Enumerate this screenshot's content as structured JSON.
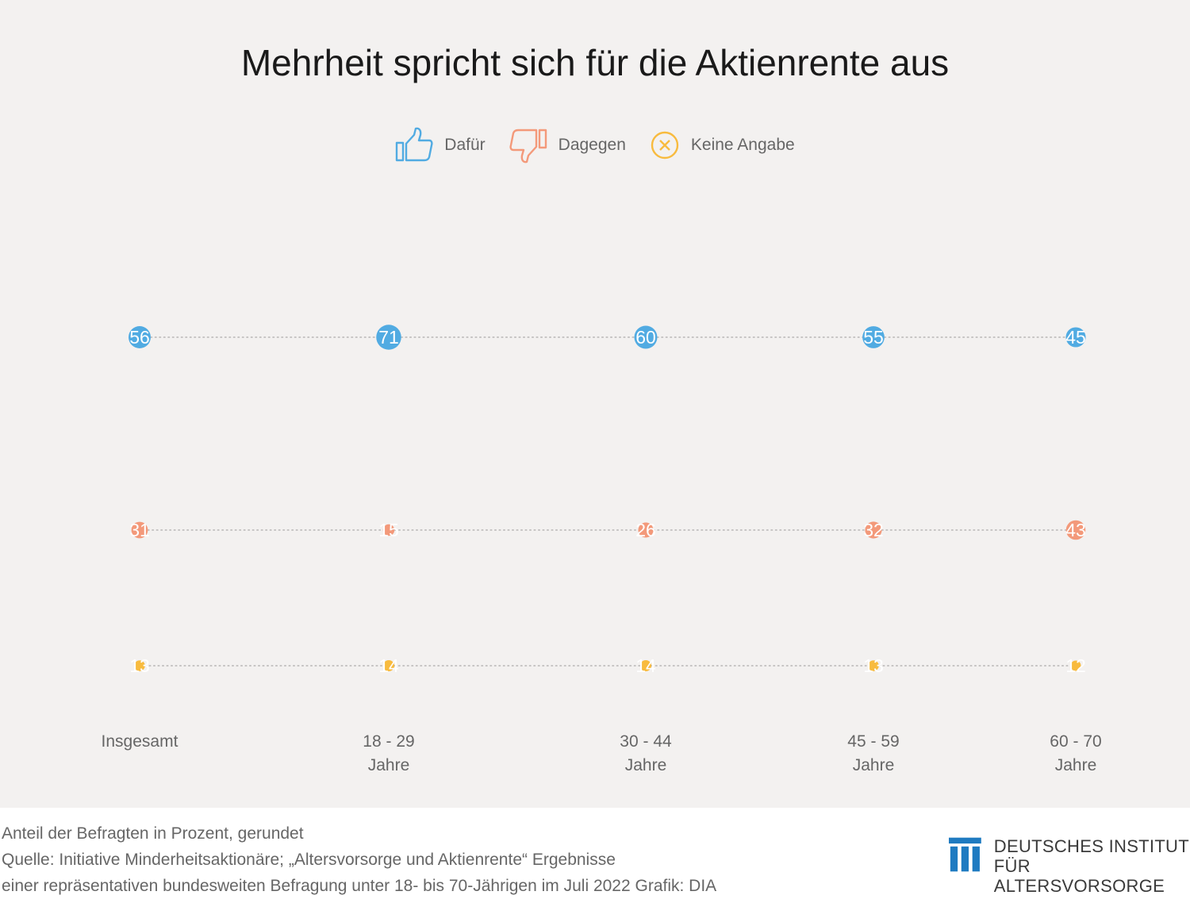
{
  "title": "Mehrheit spricht sich für die Aktienrente aus",
  "legend": {
    "items": [
      {
        "label": "Dafür",
        "icon": "thumbs-up-icon",
        "color": "#51abe2"
      },
      {
        "label": "Dagegen",
        "icon": "thumbs-down-icon",
        "color": "#f3997a"
      },
      {
        "label": "Keine Angabe",
        "icon": "x-circle-icon",
        "color": "#f8bb3e"
      }
    ]
  },
  "chart_data": {
    "type": "bubble",
    "title": "Mehrheit spricht sich für die Aktienrente aus",
    "categories": [
      {
        "line1": "Insgesamt",
        "line2": ""
      },
      {
        "line1": "18 - 29",
        "line2": "Jahre"
      },
      {
        "line1": "30 - 44",
        "line2": "Jahre"
      },
      {
        "line1": "45 - 59",
        "line2": "Jahre"
      },
      {
        "line1": "60 - 70",
        "line2": "Jahre"
      }
    ],
    "series": [
      {
        "name": "Dafür",
        "color": "#51abe2",
        "values": [
          56,
          71,
          60,
          55,
          45
        ]
      },
      {
        "name": "Dagegen",
        "color": "#f3997a",
        "values": [
          31,
          15,
          26,
          32,
          43
        ]
      },
      {
        "name": "Keine Angabe",
        "color": "#f8bb3e",
        "values": [
          13,
          14,
          14,
          13,
          12
        ]
      }
    ],
    "unit": "Prozent",
    "connector_lines": true,
    "legend_position": "top-center"
  },
  "footer": {
    "note": "Anteil der Befragten in Prozent, gerundet",
    "source_line1": "Quelle: Initiative Minderheitsaktionäre; „Altersvorsorge und Aktienrente“ Ergebnisse",
    "source_line2": "einer repräsentativen bundesweiten Befragung unter 18- bis 70-Jährigen im Juli 2022  Grafik: DIA"
  },
  "logo": {
    "line1": "DEUTSCHES INSTITUT",
    "line2": "FÜR ALTERSVORSORGE",
    "color": "#1f7bc1"
  }
}
